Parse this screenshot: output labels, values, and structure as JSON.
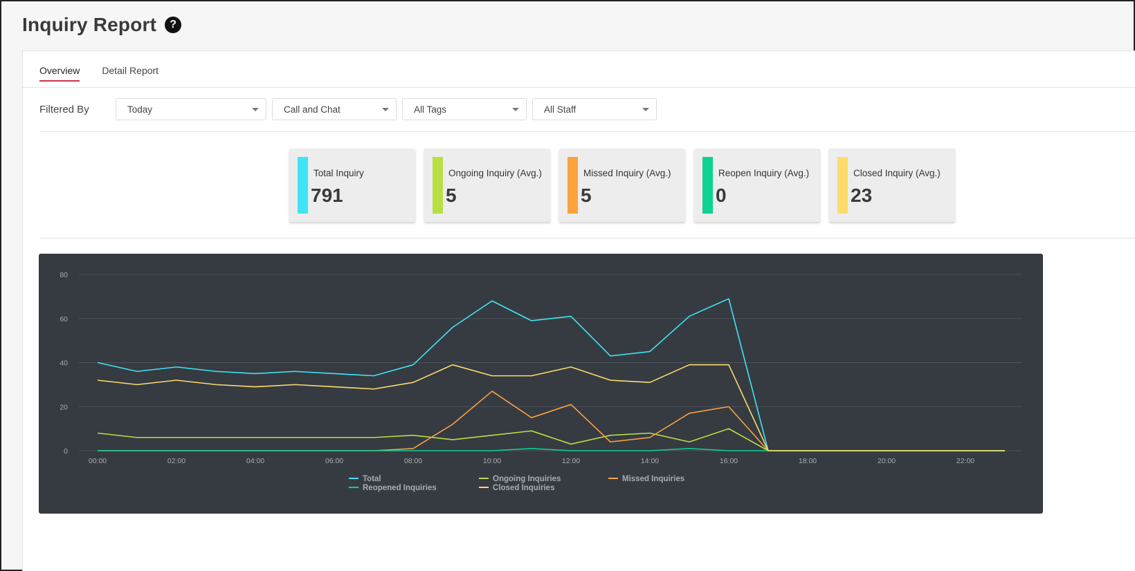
{
  "page": {
    "title": "Inquiry Report",
    "help_glyph": "?"
  },
  "tabs": [
    {
      "label": "Overview",
      "active": true
    },
    {
      "label": "Detail Report",
      "active": false
    }
  ],
  "filters": {
    "label": "Filtered By",
    "selects": [
      {
        "value": "Today"
      },
      {
        "value": "Call and Chat"
      },
      {
        "value": "All Tags"
      },
      {
        "value": "All Staff"
      }
    ]
  },
  "stats": [
    {
      "label": "Total Inquiry",
      "value": "791",
      "color": "#3ee5f6"
    },
    {
      "label": "Ongoing Inquiry (Avg.)",
      "value": "5",
      "color": "#b9df43"
    },
    {
      "label": "Missed Inquiry (Avg.)",
      "value": "5",
      "color": "#fba33f"
    },
    {
      "label": "Reopen Inquiry (Avg.)",
      "value": "0",
      "color": "#0dd294"
    },
    {
      "label": "Closed Inquiry (Avg.)",
      "value": "23",
      "color": "#fedc6b"
    }
  ],
  "chart_data": {
    "type": "line",
    "x": [
      "00:00",
      "01:00",
      "02:00",
      "03:00",
      "04:00",
      "05:00",
      "06:00",
      "07:00",
      "08:00",
      "09:00",
      "10:00",
      "11:00",
      "12:00",
      "13:00",
      "14:00",
      "15:00",
      "16:00",
      "17:00",
      "18:00",
      "19:00",
      "20:00",
      "21:00",
      "22:00",
      "23:00"
    ],
    "x_ticks": [
      "00:00",
      "02:00",
      "04:00",
      "06:00",
      "08:00",
      "10:00",
      "12:00",
      "14:00",
      "16:00",
      "18:00",
      "20:00",
      "22:00"
    ],
    "y_ticks": [
      0,
      20,
      40,
      60,
      80
    ],
    "ylim": [
      0,
      80
    ],
    "grid": true,
    "legend_position": "bottom",
    "series": [
      {
        "name": "Total",
        "color": "#3ee5f6",
        "values": [
          40,
          36,
          38,
          36,
          35,
          36,
          35,
          34,
          39,
          56,
          68,
          59,
          61,
          43,
          45,
          61,
          69,
          0,
          0,
          0,
          0,
          0,
          0,
          0
        ]
      },
      {
        "name": "Ongoing Inquiries",
        "color": "#b9df43",
        "values": [
          8,
          6,
          6,
          6,
          6,
          6,
          6,
          6,
          7,
          5,
          7,
          9,
          3,
          7,
          8,
          4,
          10,
          0,
          0,
          0,
          0,
          0,
          0,
          0
        ]
      },
      {
        "name": "Missed Inquiries",
        "color": "#fba33f",
        "values": [
          0,
          0,
          0,
          0,
          0,
          0,
          0,
          0,
          1,
          12,
          27,
          15,
          21,
          4,
          6,
          17,
          20,
          0,
          0,
          0,
          0,
          0,
          0,
          0
        ]
      },
      {
        "name": "Reopened Inquiries",
        "color": "#0dd294",
        "values": [
          0,
          0,
          0,
          0,
          0,
          0,
          0,
          0,
          0,
          0,
          0,
          1,
          0,
          0,
          0,
          1,
          0,
          0,
          0,
          0,
          0,
          0,
          0,
          0
        ]
      },
      {
        "name": "Closed Inquiries",
        "color": "#fedc6b",
        "values": [
          32,
          30,
          32,
          30,
          29,
          30,
          29,
          28,
          31,
          39,
          34,
          34,
          38,
          32,
          31,
          39,
          39,
          0,
          0,
          0,
          0,
          0,
          0,
          0
        ]
      }
    ]
  }
}
